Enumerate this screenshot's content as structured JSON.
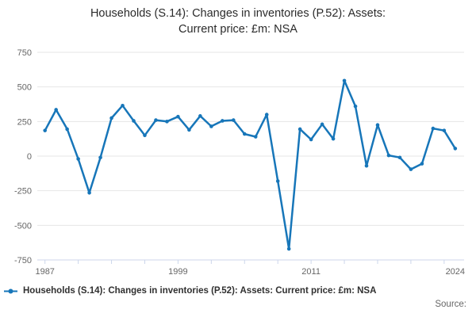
{
  "title": {
    "line1": "Households (S.14): Changes in inventories (P.52): Assets:",
    "line2": "Current price: £m: NSA"
  },
  "legend": {
    "label": "Households (S.14): Changes in inventories (P.52): Assets: Current price: £m: NSA"
  },
  "source_label": "Source:",
  "colors": {
    "line": "#1776b9",
    "grid": "#e6e6e6",
    "axis": "#ccd6eb",
    "axis_label": "#666666",
    "title_text": "#2b2b2b",
    "legend_text": "#303030",
    "source_text": "#666666"
  },
  "chart_data": {
    "type": "line",
    "title": "Households (S.14): Changes in inventories (P.52): Assets: Current price: £m: NSA",
    "xlabel": "",
    "ylabel": "",
    "ylim": [
      -750,
      750
    ],
    "grid": true,
    "legend_position": "bottom-left",
    "marker": "circle",
    "yticks": [
      750,
      500,
      250,
      0,
      -250,
      -500,
      -750
    ],
    "xticks_labeled": [
      1987,
      1999,
      2011,
      2024
    ],
    "xtick_marks_every_years": 3,
    "x": [
      1987,
      1988,
      1989,
      1990,
      1991,
      1992,
      1993,
      1994,
      1995,
      1996,
      1997,
      1998,
      1999,
      2000,
      2001,
      2002,
      2003,
      2004,
      2005,
      2006,
      2007,
      2008,
      2009,
      2010,
      2011,
      2012,
      2013,
      2014,
      2015,
      2016,
      2017,
      2018,
      2019,
      2020,
      2021,
      2022,
      2023,
      2024
    ],
    "series": [
      {
        "name": "Households (S.14): Changes in inventories (P.52): Assets: Current price: £m: NSA",
        "values": [
          185,
          335,
          195,
          -20,
          -265,
          -10,
          275,
          365,
          255,
          150,
          260,
          250,
          285,
          190,
          290,
          215,
          255,
          260,
          160,
          140,
          300,
          -180,
          -670,
          195,
          120,
          230,
          125,
          545,
          360,
          -70,
          225,
          5,
          -10,
          -95,
          -55,
          200,
          185,
          55
        ]
      }
    ]
  }
}
